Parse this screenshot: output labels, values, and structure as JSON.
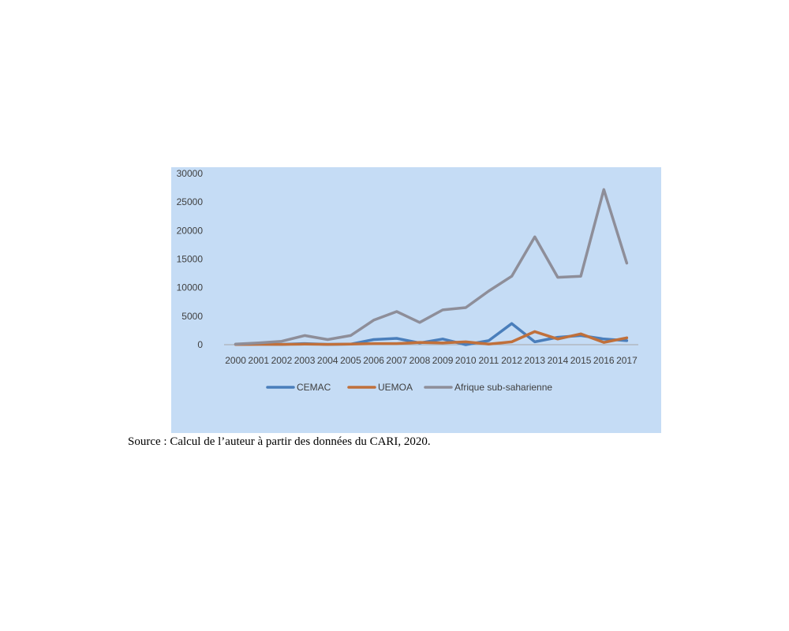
{
  "chart_data": {
    "type": "line",
    "x": [
      "2000",
      "2001",
      "2002",
      "2003",
      "2004",
      "2005",
      "2006",
      "2007",
      "2008",
      "2009",
      "2010",
      "2011",
      "2012",
      "2013",
      "2014",
      "2015",
      "2016",
      "2017"
    ],
    "ylim": [
      0,
      30000
    ],
    "yticks": [
      0,
      5000,
      10000,
      15000,
      20000,
      25000,
      30000
    ],
    "grid": false,
    "legend": "bottom",
    "series": [
      {
        "name": "CEMAC",
        "color": "#4a7ebb",
        "values": [
          50,
          100,
          50,
          200,
          50,
          100,
          900,
          1100,
          300,
          1000,
          0,
          700,
          3700,
          500,
          1300,
          1600,
          1000,
          700
        ]
      },
      {
        "name": "UEMOA",
        "color": "#c0703b",
        "values": [
          30,
          50,
          50,
          100,
          50,
          100,
          200,
          200,
          400,
          300,
          500,
          100,
          500,
          2300,
          1000,
          1900,
          400,
          1200
        ]
      },
      {
        "name": "Afrique sub-saharienne",
        "color": "#8e8e99",
        "values": [
          100,
          300,
          600,
          1600,
          900,
          1600,
          4300,
          5800,
          3900,
          6100,
          6500,
          9400,
          12000,
          18900,
          11800,
          12000,
          27200,
          14300
        ]
      }
    ]
  },
  "source": "Source : Calcul de l’auteur à partir des données du CARI, 2020."
}
